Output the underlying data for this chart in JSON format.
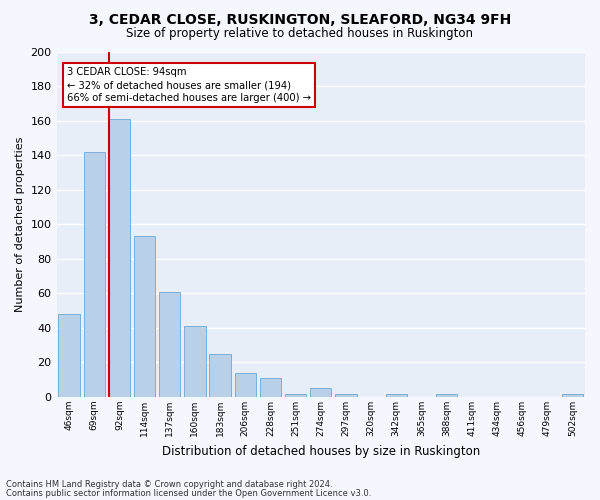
{
  "title": "3, CEDAR CLOSE, RUSKINGTON, SLEAFORD, NG34 9FH",
  "subtitle": "Size of property relative to detached houses in Ruskington",
  "xlabel": "Distribution of detached houses by size in Ruskington",
  "ylabel": "Number of detached properties",
  "categories": [
    "46sqm",
    "69sqm",
    "92sqm",
    "114sqm",
    "137sqm",
    "160sqm",
    "183sqm",
    "206sqm",
    "228sqm",
    "251sqm",
    "274sqm",
    "297sqm",
    "320sqm",
    "342sqm",
    "365sqm",
    "388sqm",
    "411sqm",
    "434sqm",
    "456sqm",
    "479sqm",
    "502sqm"
  ],
  "values": [
    48,
    142,
    161,
    93,
    61,
    41,
    25,
    14,
    11,
    2,
    5,
    2,
    0,
    2,
    0,
    2,
    0,
    0,
    0,
    0,
    2
  ],
  "bar_color": "#b8d0e8",
  "bar_edge_color": "#7aafd4",
  "highlight_bar_index": 2,
  "highlight_color": "#cc0000",
  "annotation_line1": "3 CEDAR CLOSE: 94sqm",
  "annotation_line2": "← 32% of detached houses are smaller (194)",
  "annotation_line3": "66% of semi-detached houses are larger (400) →",
  "annotation_box_color": "#cc0000",
  "ylim": [
    0,
    200
  ],
  "yticks": [
    0,
    20,
    40,
    60,
    80,
    100,
    120,
    140,
    160,
    180,
    200
  ],
  "fig_background": "#f5f7ff",
  "ax_background": "#e8eef8",
  "grid_color": "#ffffff",
  "footer1": "Contains HM Land Registry data © Crown copyright and database right 2024.",
  "footer2": "Contains public sector information licensed under the Open Government Licence v3.0."
}
